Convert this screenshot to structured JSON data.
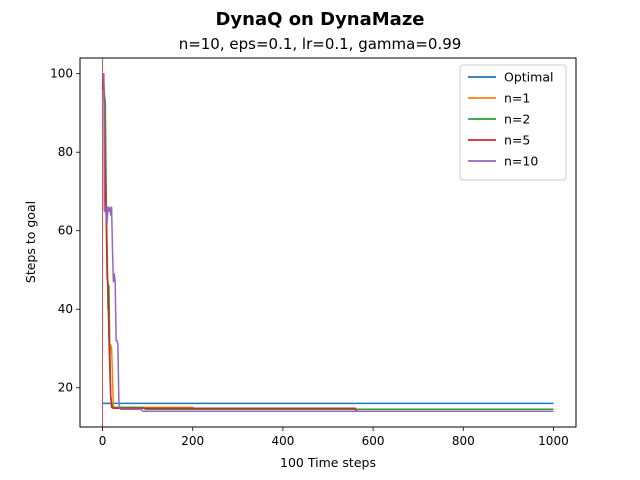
{
  "chart_data": {
    "type": "line",
    "title": "DynaQ on DynaMaze",
    "subtitle": "n=10, eps=0.1, lr=0.1, gamma=0.99",
    "xlabel": "100 Time steps",
    "ylabel": "Steps to goal",
    "xlim": [
      -50,
      1050
    ],
    "ylim": [
      10,
      104
    ],
    "xticks": [
      0,
      200,
      400,
      600,
      800,
      1000
    ],
    "yticks": [
      20,
      40,
      60,
      80,
      100
    ],
    "grid": false,
    "legend_position": "top-right",
    "vline": {
      "x": 0,
      "color": "#d62728"
    },
    "series": [
      {
        "name": "Optimal",
        "color": "#1f77b4",
        "x": [
          0,
          1000
        ],
        "y": [
          16,
          16
        ]
      },
      {
        "name": "n=1",
        "color": "#ff7f0e",
        "x": [
          0,
          2,
          4,
          6,
          8,
          10,
          12,
          14,
          16,
          18,
          20,
          22,
          24,
          26,
          28,
          30,
          200,
          205,
          560,
          565,
          1000
        ],
        "y": [
          97,
          99,
          92,
          84,
          65,
          55,
          42,
          35,
          28,
          31,
          30,
          23,
          15,
          15,
          15,
          15,
          15,
          14.5,
          14.5,
          14,
          14
        ]
      },
      {
        "name": "n=2",
        "color": "#2ca02c",
        "x": [
          0,
          2,
          4,
          6,
          8,
          10,
          12,
          14,
          16,
          18,
          20,
          22,
          90,
          95,
          1000
        ],
        "y": [
          100,
          100,
          95,
          93,
          70,
          55,
          40,
          46,
          30,
          18,
          16,
          15,
          15,
          14.5,
          14.5
        ]
      },
      {
        "name": "n=5",
        "color": "#d62728",
        "x": [
          0,
          2,
          4,
          6,
          8,
          10,
          12,
          14,
          16,
          18,
          20,
          24,
          560,
          565,
          1000
        ],
        "y": [
          96,
          100,
          92,
          73,
          63,
          48,
          47,
          33,
          25,
          18,
          15,
          14.8,
          14.8,
          14,
          14
        ]
      },
      {
        "name": "n=10",
        "color": "#9467bd",
        "x": [
          0,
          3,
          4,
          6,
          8,
          10,
          12,
          14,
          16,
          18,
          20,
          22,
          24,
          26,
          28,
          30,
          32,
          34,
          36,
          38,
          40,
          85,
          90,
          1000
        ],
        "y": [
          100,
          100,
          65,
          66,
          64,
          62,
          66,
          65,
          66,
          64,
          66,
          55,
          47,
          49,
          47,
          32,
          32,
          31,
          17,
          15,
          14.5,
          14.5,
          14,
          14
        ]
      }
    ]
  }
}
